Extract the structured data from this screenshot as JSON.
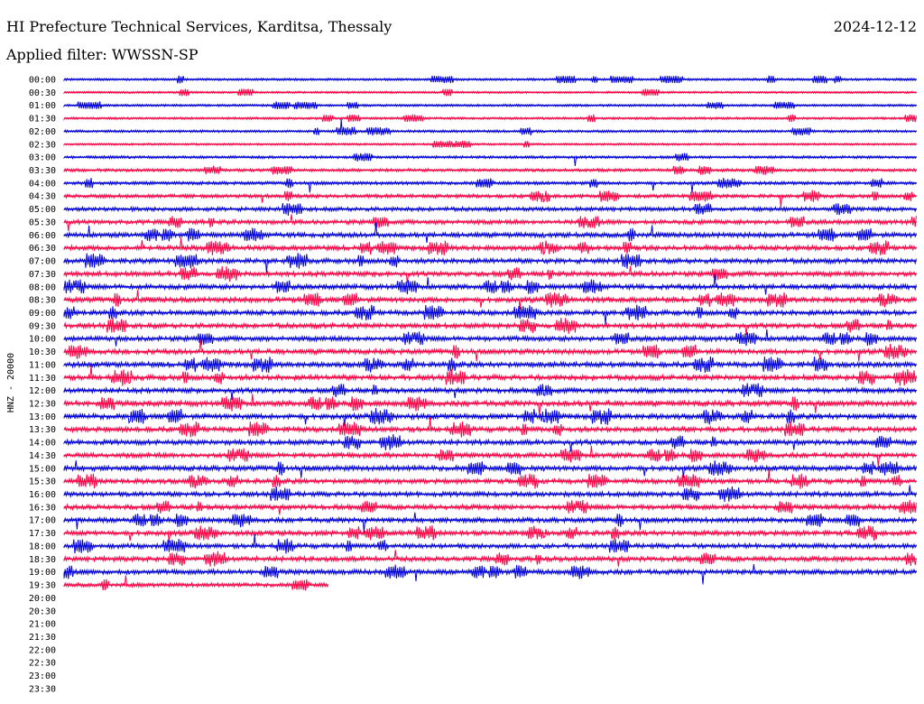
{
  "header": {
    "station": "HI Prefecture Technical Services, Karditsa, Thessaly",
    "date": "2024-12-12",
    "filter": "Applied filter: WWSSN-SP"
  },
  "chart_data": {
    "type": "line",
    "ylabel": "HNZ - 20000",
    "row_labels": [
      "00:00",
      "00:30",
      "01:00",
      "01:30",
      "02:00",
      "02:30",
      "03:00",
      "03:30",
      "04:00",
      "04:30",
      "05:00",
      "05:30",
      "06:00",
      "06:30",
      "07:00",
      "07:30",
      "08:00",
      "08:30",
      "09:00",
      "09:30",
      "10:00",
      "10:30",
      "11:00",
      "11:30",
      "12:00",
      "12:30",
      "13:00",
      "13:30",
      "14:00",
      "14:30",
      "15:00",
      "15:30",
      "16:00",
      "16:30",
      "17:00",
      "17:30",
      "18:00",
      "18:30",
      "19:00",
      "19:30",
      "20:00",
      "20:30",
      "21:00",
      "21:30",
      "22:00",
      "22:30",
      "23:00",
      "23:30"
    ],
    "row_colors": [
      "#0000dd",
      "#ff0044"
    ],
    "trace_fill": [
      1,
      1,
      1,
      1,
      1,
      1,
      1,
      1,
      1,
      1,
      1,
      1,
      1,
      1,
      1,
      1,
      1,
      1,
      1,
      1,
      1,
      1,
      1,
      1,
      1,
      1,
      1,
      1,
      1,
      1,
      1,
      1,
      1,
      1,
      1,
      1,
      1,
      1,
      1,
      0.31,
      0,
      0,
      0,
      0,
      0,
      0,
      0,
      0
    ],
    "noise_level": [
      0.25,
      0.2,
      0.25,
      0.25,
      0.3,
      0.2,
      0.35,
      0.4,
      0.45,
      0.55,
      0.65,
      0.7,
      0.8,
      0.8,
      0.85,
      0.8,
      0.85,
      0.85,
      0.85,
      0.85,
      0.8,
      0.85,
      0.9,
      0.9,
      0.85,
      0.9,
      0.95,
      0.85,
      0.85,
      0.8,
      0.85,
      0.8,
      0.8,
      0.8,
      0.8,
      0.8,
      0.8,
      0.8,
      0.8,
      0.6,
      0,
      0,
      0,
      0,
      0,
      0,
      0,
      0
    ]
  }
}
